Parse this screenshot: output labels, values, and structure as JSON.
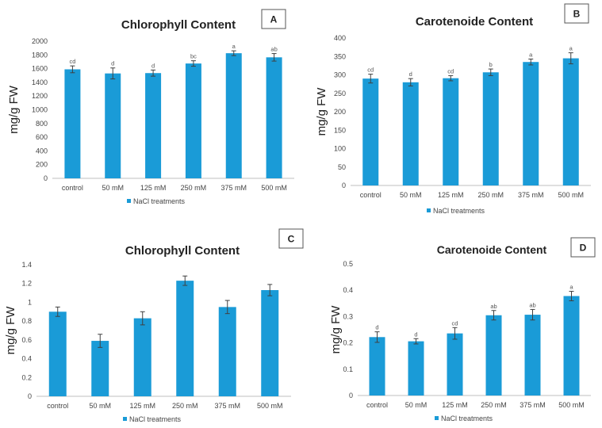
{
  "colors": {
    "bar": "#1a9bd7",
    "axis": "#bfbfbf",
    "error": "#404040"
  },
  "chart_data": [
    {
      "panel": "A",
      "type": "bar",
      "title": "Chlorophyll Content",
      "ylabel": "mg/g FW",
      "legend": "NaCl treatments",
      "categories": [
        "control",
        "50 mM",
        "125 mM",
        "250 mM",
        "375 mM",
        "500 mM"
      ],
      "values": [
        1590,
        1530,
        1535,
        1675,
        1825,
        1765
      ],
      "errors": [
        50,
        80,
        45,
        40,
        35,
        55
      ],
      "significance": [
        "cd",
        "d",
        "d",
        "bc",
        "a",
        "ab"
      ],
      "ylim": [
        0,
        2000
      ],
      "yticks": [
        0,
        200,
        400,
        600,
        800,
        1000,
        1200,
        1400,
        1600,
        1800,
        2000
      ]
    },
    {
      "panel": "B",
      "type": "bar",
      "title": "Carotenoide Content",
      "ylabel": "mg/g FW",
      "legend": "NaCl treatments",
      "categories": [
        "control",
        "50 mM",
        "125 mM",
        "250 mM",
        "375 mM",
        "500 mM"
      ],
      "values": [
        290,
        280,
        291,
        307,
        335,
        345
      ],
      "errors": [
        12,
        10,
        7,
        9,
        8,
        15
      ],
      "significance": [
        "cd",
        "d",
        "cd",
        "b",
        "a",
        "a"
      ],
      "ylim": [
        0,
        400
      ],
      "yticks": [
        0,
        50,
        100,
        150,
        200,
        250,
        300,
        350,
        400
      ]
    },
    {
      "panel": "C",
      "type": "bar",
      "title": "Chlorophyll Content",
      "ylabel": "mg/g FW",
      "legend": "NaCl treatments",
      "categories": [
        "control",
        "50 mM",
        "125 mM",
        "250 mM",
        "375 mM",
        "500 mM"
      ],
      "values": [
        0.9,
        0.59,
        0.83,
        1.23,
        0.95,
        1.13
      ],
      "errors": [
        0.05,
        0.07,
        0.07,
        0.05,
        0.07,
        0.06
      ],
      "significance": [
        "",
        "",
        "",
        "",
        "",
        ""
      ],
      "ylim": [
        0,
        1.4
      ],
      "yticks": [
        0,
        0.2,
        0.4,
        0.6,
        0.8,
        1,
        1.2,
        1.4
      ]
    },
    {
      "panel": "D",
      "type": "bar",
      "title": "Carotenoide Content",
      "ylabel": "mg/g FW",
      "legend": "NaCl treatments",
      "categories": [
        "control",
        "50 mM",
        "125 mM",
        "250 mM",
        "375 mM",
        "500 mM"
      ],
      "values": [
        0.222,
        0.206,
        0.236,
        0.305,
        0.307,
        0.378
      ],
      "errors": [
        0.02,
        0.01,
        0.022,
        0.018,
        0.02,
        0.018
      ],
      "significance": [
        "d",
        "d",
        "cd",
        "ab",
        "ab",
        "a"
      ],
      "ylim": [
        0,
        0.5
      ],
      "yticks": [
        0,
        0.1,
        0.2,
        0.3,
        0.4,
        0.5
      ]
    }
  ]
}
